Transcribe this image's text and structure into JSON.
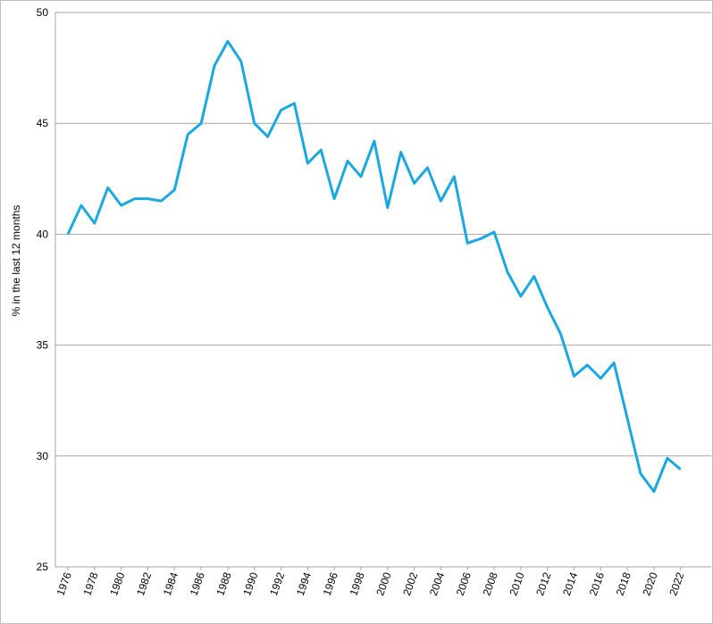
{
  "chart_data": {
    "type": "line",
    "y_label": "% in the last 12 months",
    "x": [
      1976,
      1977,
      1978,
      1979,
      1980,
      1981,
      1982,
      1983,
      1984,
      1985,
      1986,
      1987,
      1988,
      1989,
      1990,
      1991,
      1992,
      1993,
      1994,
      1995,
      1996,
      1997,
      1998,
      1999,
      2000,
      2001,
      2002,
      2003,
      2004,
      2005,
      2006,
      2007,
      2008,
      2009,
      2010,
      2011,
      2012,
      2013,
      2014,
      2015,
      2016,
      2017,
      2018,
      2019,
      2020,
      2021,
      2022
    ],
    "series": [
      {
        "color": "#1ba8e0",
        "values": [
          40.0,
          41.3,
          40.5,
          42.1,
          41.3,
          41.6,
          41.6,
          41.5,
          42.0,
          44.5,
          45.0,
          47.6,
          48.7,
          47.8,
          45.0,
          44.4,
          45.6,
          45.9,
          43.2,
          43.8,
          41.6,
          43.3,
          42.6,
          44.2,
          41.2,
          43.7,
          42.3,
          43.0,
          41.5,
          42.6,
          39.6,
          39.8,
          40.1,
          38.3,
          37.2,
          38.1,
          36.7,
          35.5,
          33.6,
          34.1,
          33.5,
          34.2,
          31.7,
          29.2,
          28.4,
          29.9,
          29.4
        ]
      }
    ],
    "xlim": [
      1975.06,
      2024.3
    ],
    "xticks": [
      1976,
      1978,
      1980,
      1982,
      1984,
      1986,
      1988,
      1990,
      1992,
      1994,
      1996,
      1998,
      2000,
      2002,
      2004,
      2006,
      2008,
      2010,
      2012,
      2014,
      2016,
      2018,
      2020,
      2022
    ],
    "ylim": [
      25,
      50
    ],
    "yticks": [
      25,
      30,
      35,
      40,
      45,
      50
    ],
    "grid": true
  }
}
